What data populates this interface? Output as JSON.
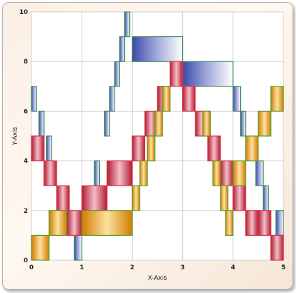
{
  "chart_data": {
    "type": "bar",
    "subtype": "floating-range-bars",
    "xlabel": "X-Axis",
    "ylabel": "Y-Axis",
    "xlim": [
      0,
      5
    ],
    "ylim": [
      0,
      10
    ],
    "x_ticks": [
      "0",
      "1",
      "2",
      "3",
      "4",
      "5"
    ],
    "y_ticks": [
      "0",
      "2",
      "4",
      "6",
      "8",
      "10"
    ],
    "grid": true,
    "series": [
      {
        "color": "#2c3a9a",
        "edge": "#3d8f5c",
        "bars": [
          {
            "x0": 0.0,
            "x1": 0.1,
            "y0": 6.0,
            "y1": 7.0
          },
          {
            "x0": 0.15,
            "x1": 0.25,
            "y0": 5.0,
            "y1": 6.0
          },
          {
            "x0": 0.3,
            "x1": 0.4,
            "y0": 4.0,
            "y1": 5.0
          },
          {
            "x0": 0.85,
            "x1": 1.0,
            "y0": 0.0,
            "y1": 1.0
          },
          {
            "x0": 1.25,
            "x1": 1.35,
            "y0": 3.0,
            "y1": 4.0
          },
          {
            "x0": 1.45,
            "x1": 1.55,
            "y0": 5.0,
            "y1": 6.0
          },
          {
            "x0": 1.55,
            "x1": 1.65,
            "y0": 6.0,
            "y1": 7.0
          },
          {
            "x0": 1.65,
            "x1": 1.75,
            "y0": 7.0,
            "y1": 8.0
          },
          {
            "x0": 1.75,
            "x1": 1.85,
            "y0": 8.0,
            "y1": 9.0
          },
          {
            "x0": 1.85,
            "x1": 1.95,
            "y0": 9.0,
            "y1": 10.0
          },
          {
            "x0": 2.0,
            "x1": 3.0,
            "y0": 8.0,
            "y1": 9.0
          },
          {
            "x0": 3.0,
            "x1": 4.0,
            "y0": 7.0,
            "y1": 8.0
          },
          {
            "x0": 4.0,
            "x1": 4.15,
            "y0": 6.0,
            "y1": 7.0
          },
          {
            "x0": 4.15,
            "x1": 4.25,
            "y0": 5.0,
            "y1": 6.0
          },
          {
            "x0": 4.45,
            "x1": 4.6,
            "y0": 3.0,
            "y1": 4.0
          },
          {
            "x0": 4.6,
            "x1": 4.7,
            "y0": 2.0,
            "y1": 3.0
          },
          {
            "x0": 4.85,
            "x1": 5.0,
            "y0": 1.0,
            "y1": 2.0
          }
        ]
      },
      {
        "color": "#b81d35",
        "edge": "#e0304a",
        "bars": [
          {
            "x0": 0.0,
            "x1": 0.25,
            "y0": 4.0,
            "y1": 5.0
          },
          {
            "x0": 0.25,
            "x1": 0.5,
            "y0": 3.0,
            "y1": 4.0
          },
          {
            "x0": 0.5,
            "x1": 0.75,
            "y0": 2.0,
            "y1": 3.0
          },
          {
            "x0": 0.7,
            "x1": 1.0,
            "y0": 1.0,
            "y1": 2.0
          },
          {
            "x0": 1.0,
            "x1": 1.5,
            "y0": 2.0,
            "y1": 3.0
          },
          {
            "x0": 1.5,
            "x1": 2.0,
            "y0": 3.0,
            "y1": 4.0
          },
          {
            "x0": 2.0,
            "x1": 2.25,
            "y0": 4.0,
            "y1": 5.0
          },
          {
            "x0": 2.25,
            "x1": 2.5,
            "y0": 5.0,
            "y1": 6.0
          },
          {
            "x0": 2.5,
            "x1": 2.75,
            "y0": 6.0,
            "y1": 7.0
          },
          {
            "x0": 2.75,
            "x1": 3.0,
            "y0": 7.0,
            "y1": 8.0
          },
          {
            "x0": 3.0,
            "x1": 3.25,
            "y0": 6.0,
            "y1": 7.0
          },
          {
            "x0": 3.25,
            "x1": 3.5,
            "y0": 5.0,
            "y1": 6.0
          },
          {
            "x0": 3.5,
            "x1": 3.75,
            "y0": 4.0,
            "y1": 5.0
          },
          {
            "x0": 3.75,
            "x1": 4.0,
            "y0": 3.0,
            "y1": 4.0
          },
          {
            "x0": 4.0,
            "x1": 4.25,
            "y0": 2.0,
            "y1": 3.0
          },
          {
            "x0": 4.25,
            "x1": 4.5,
            "y0": 1.0,
            "y1": 2.0
          },
          {
            "x0": 4.5,
            "x1": 4.75,
            "y0": 1.0,
            "y1": 2.0
          },
          {
            "x0": 4.75,
            "x1": 5.0,
            "y0": 0.0,
            "y1": 1.0
          }
        ]
      },
      {
        "color": "#d98a00",
        "edge": "#5a9e2a",
        "bars": [
          {
            "x0": 0.0,
            "x1": 0.35,
            "y0": 0.0,
            "y1": 1.0
          },
          {
            "x0": 0.35,
            "x1": 0.7,
            "y0": 1.0,
            "y1": 2.0
          },
          {
            "x0": 1.0,
            "x1": 2.0,
            "y0": 1.0,
            "y1": 2.0
          },
          {
            "x0": 2.0,
            "x1": 2.15,
            "y0": 2.0,
            "y1": 3.0
          },
          {
            "x0": 2.15,
            "x1": 2.3,
            "y0": 3.0,
            "y1": 4.0
          },
          {
            "x0": 2.3,
            "x1": 2.45,
            "y0": 4.0,
            "y1": 5.0
          },
          {
            "x0": 2.45,
            "x1": 2.6,
            "y0": 5.0,
            "y1": 6.0
          },
          {
            "x0": 2.6,
            "x1": 2.75,
            "y0": 6.0,
            "y1": 7.0
          },
          {
            "x0": 3.4,
            "x1": 3.55,
            "y0": 5.0,
            "y1": 6.0
          },
          {
            "x0": 3.6,
            "x1": 3.75,
            "y0": 3.0,
            "y1": 4.0
          },
          {
            "x0": 3.75,
            "x1": 3.9,
            "y0": 2.0,
            "y1": 3.0
          },
          {
            "x0": 3.85,
            "x1": 4.0,
            "y0": 1.0,
            "y1": 2.0
          },
          {
            "x0": 4.0,
            "x1": 4.25,
            "y0": 3.0,
            "y1": 4.0
          },
          {
            "x0": 4.25,
            "x1": 4.5,
            "y0": 4.0,
            "y1": 5.0
          },
          {
            "x0": 4.5,
            "x1": 4.75,
            "y0": 5.0,
            "y1": 6.0
          },
          {
            "x0": 4.75,
            "x1": 5.0,
            "y0": 6.0,
            "y1": 7.0
          }
        ]
      }
    ]
  }
}
